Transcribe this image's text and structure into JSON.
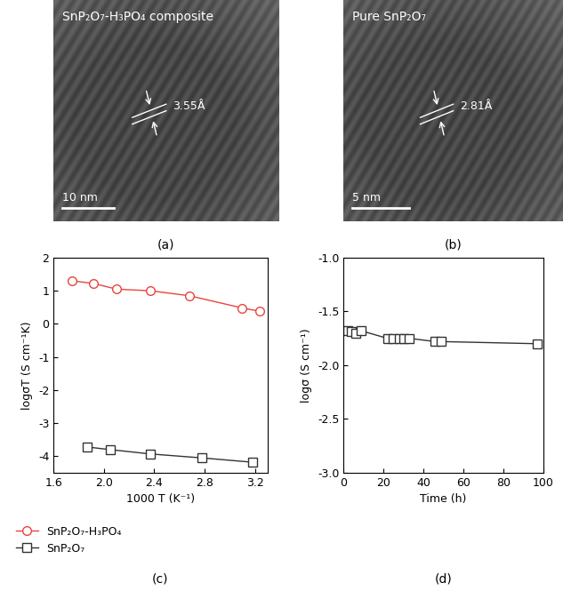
{
  "images": [
    {
      "panel_label": "(a)",
      "caption": "SnP₂O₇-H₃PO₄ composite",
      "spacing": "3.55Å",
      "scale_bar": "10 nm"
    },
    {
      "panel_label": "(b)",
      "caption": "Pure SnP₂O₇",
      "spacing": "2.81Å",
      "scale_bar": "5 nm"
    }
  ],
  "chart_data": [
    {
      "type": "line",
      "panel_label": "(c)",
      "x_label": "1000 T (K⁻¹)",
      "y_label": "logσT (S cm⁻¹K)",
      "xlim": [
        1.6,
        3.3
      ],
      "xticks": [
        1.6,
        2.0,
        2.4,
        2.8,
        3.2
      ],
      "ylim": [
        -4.5,
        2
      ],
      "yticks": [
        -4,
        -3,
        -2,
        -1,
        0,
        1,
        2
      ],
      "legend": "lower left",
      "series": [
        {
          "name": "SnP₂O₇-H₃PO₄",
          "color": "#e8453c",
          "marker": "o",
          "line_style": "solid",
          "x": [
            1.75,
            1.92,
            2.1,
            2.37,
            2.68,
            3.1,
            3.24
          ],
          "values": [
            1.3,
            1.22,
            1.05,
            1.0,
            0.85,
            0.48,
            0.38
          ]
        },
        {
          "name": "SnP₂O₇",
          "color": "#333333",
          "marker": "s",
          "line_style": "solid",
          "x": [
            1.87,
            2.05,
            2.37,
            2.78,
            3.18
          ],
          "values": [
            -3.72,
            -3.8,
            -3.93,
            -4.05,
            -4.18
          ]
        }
      ]
    },
    {
      "type": "line",
      "panel_label": "(d)",
      "x_label": "Time (h)",
      "y_label": "logσ (S cm⁻¹)",
      "xlim": [
        0,
        100
      ],
      "xticks": [
        0,
        20,
        40,
        60,
        80,
        100
      ],
      "ylim": [
        -3.0,
        -1.0
      ],
      "yticks": [
        {
          "value": -3.0,
          "label": "-3.0"
        },
        {
          "value": -2.5,
          "label": "-2.5"
        },
        {
          "value": -2.0,
          "label": "-2.0"
        },
        {
          "value": -1.5,
          "label": "-1.5"
        },
        {
          "value": -1.0,
          "label": "-1.0"
        }
      ],
      "series": [
        {
          "color": "#333333",
          "marker": "s",
          "line_style": "solid",
          "x": [
            2,
            4,
            6,
            9,
            22,
            25,
            28,
            30,
            33,
            46,
            49,
            97
          ],
          "values": [
            -1.68,
            -1.69,
            -1.7,
            -1.68,
            -1.75,
            -1.75,
            -1.75,
            -1.75,
            -1.75,
            -1.78,
            -1.78,
            -1.8
          ]
        }
      ]
    }
  ]
}
